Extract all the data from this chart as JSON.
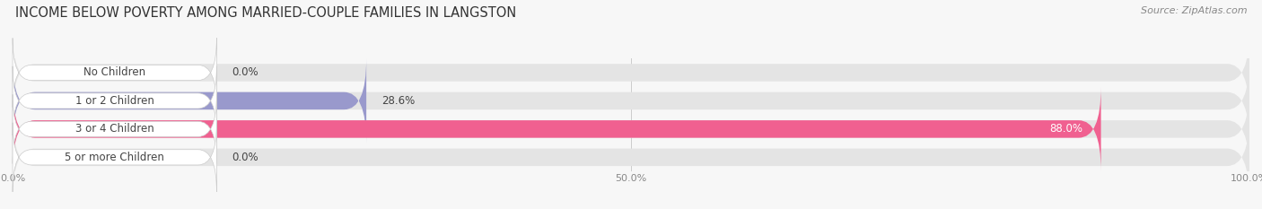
{
  "title": "INCOME BELOW POVERTY AMONG MARRIED-COUPLE FAMILIES IN LANGSTON",
  "source": "Source: ZipAtlas.com",
  "categories": [
    "No Children",
    "1 or 2 Children",
    "3 or 4 Children",
    "5 or more Children"
  ],
  "values": [
    0.0,
    28.6,
    88.0,
    0.0
  ],
  "bar_colors": [
    "#5ecece",
    "#9999cc",
    "#f06090",
    "#f5c8a0"
  ],
  "xlim": [
    0,
    100
  ],
  "xtick_labels": [
    "0.0%",
    "50.0%",
    "100.0%"
  ],
  "background_color": "#f7f7f7",
  "bar_bg_color": "#e4e4e4",
  "title_fontsize": 10.5,
  "source_fontsize": 8,
  "label_fontsize": 8.5,
  "value_fontsize": 8.5,
  "bar_height": 0.62,
  "bar_gap": 1.0
}
